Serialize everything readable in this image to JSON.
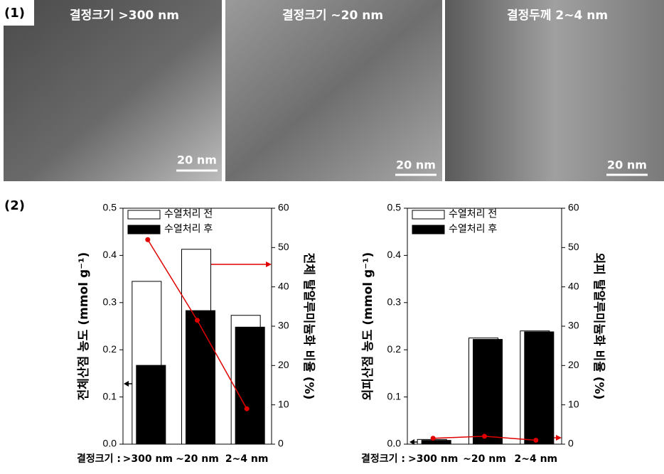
{
  "panel_labels": [
    "(1)",
    "(2)"
  ],
  "images": [
    {
      "caption": "결정크기 >300 nm",
      "scale_bar": "20 nm"
    },
    {
      "caption": "결정크기 ~20 nm",
      "scale_bar": "20 nm"
    },
    {
      "caption": "결정두께 2~4 nm",
      "scale_bar": "20 nm"
    }
  ],
  "chart_data": [
    {
      "type": "bar",
      "xlabel": "결정크기 :",
      "ylabel": "전체산점 농도 (mmol g⁻¹)",
      "y2label": "전체 탈알루미늄화 비율 (%)",
      "categories": [
        ">300 nm",
        "~20 nm",
        "2~4 nm"
      ],
      "series": [
        {
          "name": "수열처리 전",
          "color": "#ffffff",
          "values": [
            0.345,
            0.413,
            0.273
          ]
        },
        {
          "name": "수열처리 후",
          "color": "#000000",
          "values": [
            0.167,
            0.283,
            0.248
          ]
        },
        {
          "type": "line",
          "axis": "y2",
          "color": "#e00000",
          "values": [
            52,
            31.5,
            9
          ]
        }
      ],
      "ylim": [
        0,
        0.5
      ],
      "yticks": [
        {
          "value": 0,
          "label": "0.0"
        },
        0.1,
        0.2,
        0.3,
        0.4,
        0.5
      ],
      "y2lim": [
        0,
        60
      ],
      "y2ticks": [
        0,
        10,
        20,
        30,
        40,
        50,
        60
      ]
    },
    {
      "type": "bar",
      "xlabel": "결정크기 :",
      "ylabel": "외피산점 농도 (mmol g⁻¹)",
      "y2label": "외피 탈알루미늄화 비율 (%)",
      "categories": [
        ">300 nm",
        "~20 nm",
        "2~4 nm"
      ],
      "series": [
        {
          "name": "수열처리 전",
          "color": "#ffffff",
          "values": [
            0.01,
            0.225,
            0.24
          ]
        },
        {
          "name": "수열처리 후",
          "color": "#000000",
          "values": [
            0.008,
            0.222,
            0.238
          ]
        },
        {
          "type": "line",
          "axis": "y2",
          "color": "#e00000",
          "values": [
            1.5,
            2.0,
            1.0
          ]
        }
      ],
      "ylim": [
        0,
        0.5
      ],
      "yticks": [
        {
          "value": 0,
          "label": "0.0"
        },
        0.1,
        0.2,
        0.3,
        0.4,
        0.5
      ],
      "y2lim": [
        0,
        60
      ],
      "y2ticks": [
        0,
        10,
        20,
        30,
        40,
        50,
        60
      ]
    }
  ]
}
